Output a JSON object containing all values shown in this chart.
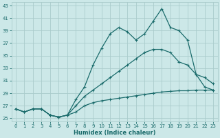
{
  "xlabel": "Humidex (Indice chaleur)",
  "bg_color": "#cce8e8",
  "grid_color": "#aacccc",
  "line_color": "#1a6b6b",
  "xlim": [
    -0.5,
    23.5
  ],
  "ylim": [
    24.5,
    43.5
  ],
  "xticks": [
    0,
    1,
    2,
    3,
    4,
    5,
    6,
    7,
    8,
    9,
    10,
    11,
    12,
    13,
    14,
    15,
    16,
    17,
    18,
    19,
    20,
    21,
    22,
    23
  ],
  "yticks": [
    25,
    27,
    29,
    31,
    33,
    35,
    37,
    39,
    41,
    43
  ],
  "curve1_x": [
    0,
    1,
    2,
    3,
    4,
    5,
    6,
    7,
    8,
    9,
    10,
    11,
    12,
    13,
    14,
    15,
    16,
    17,
    18,
    19,
    20,
    21,
    22,
    23
  ],
  "curve1_y": [
    26.5,
    26.0,
    26.5,
    26.5,
    25.5,
    25.2,
    25.5,
    28.0,
    30.0,
    33.5,
    36.2,
    38.5,
    39.5,
    38.8,
    37.5,
    38.5,
    40.5,
    42.5,
    39.5,
    39.0,
    37.5,
    32.0,
    31.5,
    30.5
  ],
  "curve2_x": [
    0,
    1,
    2,
    3,
    4,
    5,
    6,
    7,
    8,
    9,
    10,
    11,
    12,
    13,
    14,
    15,
    16,
    17,
    18,
    19,
    20,
    21,
    22,
    23
  ],
  "curve2_y": [
    26.5,
    26.0,
    26.5,
    26.5,
    25.5,
    25.2,
    25.5,
    27.0,
    28.5,
    29.5,
    30.5,
    31.5,
    32.5,
    33.5,
    34.5,
    35.5,
    36.0,
    36.0,
    35.5,
    34.0,
    33.5,
    32.0,
    30.0,
    29.5
  ],
  "curve3_x": [
    0,
    1,
    2,
    3,
    4,
    5,
    6,
    7,
    8,
    9,
    10,
    11,
    12,
    13,
    14,
    15,
    16,
    17,
    18,
    19,
    20,
    21,
    22,
    23
  ],
  "curve3_y": [
    26.5,
    26.0,
    26.5,
    26.5,
    25.5,
    25.2,
    25.5,
    26.0,
    27.0,
    27.5,
    27.8,
    28.0,
    28.2,
    28.4,
    28.6,
    28.8,
    29.0,
    29.2,
    29.3,
    29.4,
    29.4,
    29.5,
    29.5,
    29.5
  ],
  "marker": "+",
  "markersize": 3.5,
  "markeredgewidth": 0.8,
  "linewidth": 0.9
}
